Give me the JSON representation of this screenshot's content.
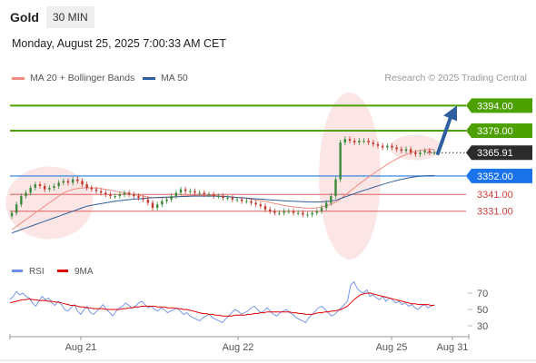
{
  "header": {
    "symbol": "Gold",
    "timeframe": "30 MIN"
  },
  "datetime": "Monday, August 25, 2025 7:00:33 AM CET",
  "legend": {
    "bollinger": {
      "label": "MA 20 + Bollinger Bands",
      "color": "#f28b82"
    },
    "ma50": {
      "label": "MA 50",
      "color": "#2f5f9e"
    },
    "credit": "Research © 2025 Trading Central"
  },
  "colors": {
    "bull": "#3a8a3a",
    "bear": "#c0392b",
    "support": "#4a90e2",
    "target": "#4ca000",
    "resistance_minor": "#e06060",
    "arrow": "#2f5f9e",
    "rsi": "#6b8ee6",
    "ma9": "#e30000"
  },
  "chart_data": [
    {
      "type": "candlestick",
      "x_ticks": [
        "Aug 21",
        "Aug 22",
        "Aug 25",
        "Aug 31"
      ],
      "ylim": [
        3300,
        3405
      ],
      "levels": [
        {
          "value": 3394.0,
          "label": "3394.00",
          "style": "target-box"
        },
        {
          "value": 3379.0,
          "label": "3379.00",
          "style": "target-box"
        },
        {
          "value": 3365.91,
          "label": "3365.91",
          "style": "last-price"
        },
        {
          "value": 3352.0,
          "label": "3352.00",
          "style": "support-box"
        },
        {
          "value": 3341.0,
          "label": "3341.00",
          "style": "red-text"
        },
        {
          "value": 3331.0,
          "label": "3331.00",
          "style": "red-text"
        }
      ],
      "close": [
        3330,
        3335,
        3340,
        3342,
        3345,
        3347,
        3346,
        3344,
        3345,
        3346,
        3348,
        3349,
        3348,
        3350,
        3349,
        3347,
        3345,
        3344,
        3343,
        3342,
        3341,
        3340,
        3340,
        3341,
        3342,
        3341,
        3340,
        3339,
        3338,
        3336,
        3333,
        3335,
        3337,
        3338,
        3340,
        3342,
        3344,
        3343,
        3343,
        3342,
        3342,
        3341,
        3341,
        3340,
        3340,
        3339,
        3339,
        3338,
        3338,
        3337,
        3337,
        3336,
        3335,
        3334,
        3332,
        3331,
        3330,
        3330,
        3331,
        3331,
        3330,
        3330,
        3329,
        3329,
        3330,
        3331,
        3333,
        3336,
        3340,
        3350,
        3372,
        3374,
        3373,
        3372,
        3373,
        3373,
        3372,
        3371,
        3370,
        3369,
        3370,
        3369,
        3368,
        3367,
        3368,
        3366,
        3365,
        3366,
        3367,
        3366,
        3366
      ],
      "ma20": [
        3320,
        3322,
        3324,
        3326,
        3328,
        3330,
        3332,
        3334,
        3336,
        3338,
        3340,
        3342,
        3343,
        3344,
        3344.5,
        3344.8,
        3345,
        3345,
        3344.8,
        3344.5,
        3344,
        3343.5,
        3343,
        3342.5,
        3342,
        3341.5,
        3341,
        3340.5,
        3340,
        3339.5,
        3339,
        3339,
        3339,
        3339,
        3339.2,
        3339.5,
        3340,
        3340.2,
        3340.3,
        3340.4,
        3340.4,
        3340.4,
        3340.4,
        3340.3,
        3340.2,
        3340,
        3339.8,
        3339.5,
        3339.2,
        3339,
        3338.6,
        3338.2,
        3337.8,
        3337.3,
        3336.8,
        3336.2,
        3335.6,
        3335,
        3334.4,
        3334,
        3333.6,
        3333.3,
        3333,
        3332.8,
        3332.8,
        3333,
        3333.5,
        3334.2,
        3335.2,
        3336.5,
        3338.3,
        3340.5,
        3342.8,
        3345,
        3347.2,
        3349.3,
        3351.3,
        3353.3,
        3355.2,
        3357.1,
        3358.9,
        3360.6,
        3362.2,
        3363.6,
        3364.8,
        3365.8,
        3366.6,
        3367.2,
        3367.6,
        3367.8,
        3368
      ],
      "ma50": [
        3318,
        3319,
        3320,
        3321,
        3322,
        3323,
        3324,
        3325,
        3326,
        3327,
        3328,
        3329,
        3330,
        3331,
        3332,
        3333,
        3334,
        3334.5,
        3335,
        3335.5,
        3336,
        3336.5,
        3337,
        3337.3,
        3337.6,
        3337.9,
        3338.2,
        3338.4,
        3338.6,
        3338.8,
        3339,
        3339.2,
        3339.3,
        3339.4,
        3339.5,
        3339.6,
        3339.7,
        3339.8,
        3339.9,
        3340,
        3340,
        3340,
        3340,
        3340,
        3339.9,
        3339.8,
        3339.6,
        3339.4,
        3339.2,
        3339,
        3338.8,
        3338.6,
        3338.4,
        3338.2,
        3338,
        3337.8,
        3337.6,
        3337.4,
        3337.2,
        3337,
        3336.9,
        3336.8,
        3336.7,
        3336.6,
        3336.5,
        3336.5,
        3336.6,
        3336.8,
        3337,
        3337.5,
        3338.5,
        3339.5,
        3340.5,
        3341.5,
        3342.5,
        3343.4,
        3344.3,
        3345.2,
        3346.1,
        3347,
        3347.8,
        3348.6,
        3349.3,
        3350,
        3350.6,
        3351.1,
        3351.5,
        3351.8,
        3352,
        3352.2,
        3352.3
      ]
    },
    {
      "type": "line",
      "series": [
        {
          "name": "RSI",
          "color": "#6b8ee6"
        },
        {
          "name": "9MA",
          "color": "#e30000"
        }
      ],
      "y_ticks": [
        "70",
        "50",
        "30"
      ],
      "ylim": [
        20,
        80
      ],
      "rsi": [
        62,
        66,
        72,
        68,
        70,
        66,
        64,
        58,
        54,
        60,
        66,
        62,
        64,
        58,
        55,
        60,
        56,
        50,
        48,
        52,
        56,
        48,
        44,
        50,
        54,
        46,
        44,
        48,
        52,
        56,
        50,
        46,
        42,
        48,
        52,
        54,
        58,
        55,
        52,
        54,
        58,
        60,
        56,
        52,
        54,
        50,
        48,
        52,
        50,
        46,
        48,
        50,
        52,
        48,
        44,
        46,
        42,
        40,
        38,
        36,
        40,
        42,
        44,
        40,
        38,
        36,
        34,
        38,
        42,
        46,
        50,
        48,
        44,
        46,
        48,
        52,
        54,
        50,
        46,
        48,
        52,
        48,
        44,
        42,
        46,
        48,
        50,
        46,
        44,
        40,
        38,
        36,
        34,
        40,
        44,
        48,
        52,
        54,
        50,
        46,
        42,
        44,
        48,
        52,
        56,
        60,
        80,
        84,
        76,
        72,
        70,
        74,
        66,
        68,
        64,
        62,
        66,
        60,
        64,
        62,
        58,
        60,
        56,
        58,
        54,
        56,
        52,
        50,
        54,
        56,
        52,
        54,
        56
      ],
      "ma9": [
        58,
        59,
        60,
        61,
        62,
        62,
        63,
        62,
        62,
        61,
        61,
        61,
        60,
        60,
        59,
        59,
        58,
        57,
        56,
        55,
        55,
        54,
        53,
        53,
        52,
        52,
        51,
        51,
        51,
        51,
        50,
        50,
        50,
        50,
        50,
        51,
        51,
        52,
        52,
        53,
        53,
        54,
        54,
        54,
        54,
        54,
        53,
        53,
        53,
        52,
        52,
        52,
        51,
        51,
        50,
        50,
        49,
        48,
        47,
        46,
        45,
        45,
        44,
        44,
        43,
        43,
        42,
        42,
        42,
        42,
        43,
        43,
        43,
        43,
        44,
        44,
        45,
        45,
        46,
        46,
        47,
        47,
        47,
        47,
        47,
        47,
        47,
        47,
        46,
        46,
        45,
        45,
        44,
        44,
        44,
        45,
        46,
        46,
        47,
        47,
        48,
        48,
        49,
        50,
        52,
        54,
        58,
        62,
        65,
        68,
        69,
        70,
        70,
        69,
        68,
        67,
        66,
        65,
        64,
        63,
        62,
        61,
        60,
        59,
        58,
        57,
        57,
        56,
        56,
        56,
        56,
        55,
        55
      ]
    }
  ]
}
